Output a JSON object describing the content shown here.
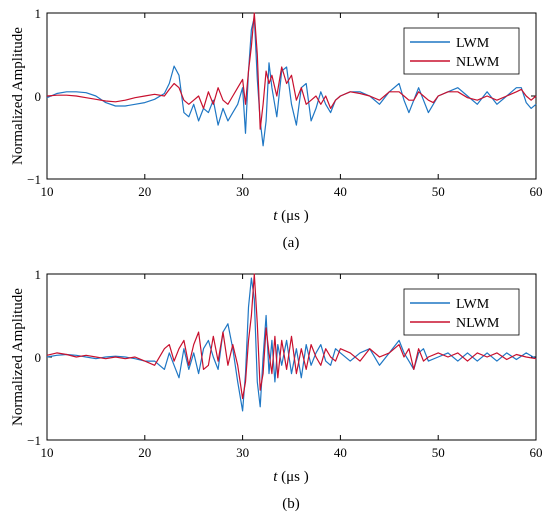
{
  "chart_data": [
    {
      "type": "line",
      "panel_label": "(a)",
      "ylabel": "Normalized Amplitude",
      "xlabel_var": "t",
      "xlabel_unit": " (μs )",
      "xlim": [
        10,
        60
      ],
      "ylim": [
        -1,
        1
      ],
      "xticks": [
        "10",
        "20",
        "30",
        "40",
        "50",
        "60"
      ],
      "yticks": [
        "-1",
        "0",
        "1"
      ],
      "grid": false,
      "legend_position": "top-right",
      "colors": {
        "LWM": "#1f77c4",
        "NLWM": "#c8102e"
      },
      "series": [
        {
          "name": "LWM",
          "x": [
            10,
            11,
            12,
            13,
            14,
            15,
            16,
            17,
            18,
            19,
            20,
            21,
            22,
            22.5,
            23,
            23.5,
            24,
            24.5,
            25,
            25.5,
            26,
            26.5,
            27,
            27.5,
            28,
            28.5,
            29,
            29.5,
            30,
            30.3,
            30.6,
            30.9,
            31.2,
            31.5,
            31.8,
            32.1,
            32.4,
            32.7,
            33,
            33.5,
            34,
            34.5,
            35,
            35.5,
            36,
            36.5,
            37,
            37.5,
            38,
            38.5,
            39,
            39.5,
            40,
            41,
            42,
            43,
            44,
            45,
            46,
            46.5,
            47,
            47.5,
            48,
            48.5,
            49,
            49.5,
            50,
            51,
            52,
            53,
            54,
            55,
            56,
            57,
            58,
            58.5,
            59,
            59.5,
            60
          ],
          "y": [
            -0.02,
            0.03,
            0.05,
            0.05,
            0.04,
            0.0,
            -0.08,
            -0.12,
            -0.12,
            -0.1,
            -0.08,
            -0.04,
            0.03,
            0.15,
            0.36,
            0.25,
            -0.2,
            -0.25,
            -0.1,
            -0.3,
            -0.15,
            -0.2,
            -0.05,
            -0.35,
            -0.15,
            -0.3,
            -0.2,
            -0.1,
            0.1,
            -0.45,
            0.3,
            0.8,
            0.95,
            0.2,
            -0.3,
            -0.6,
            -0.3,
            0.4,
            0.1,
            -0.25,
            0.3,
            0.35,
            -0.1,
            -0.35,
            0.1,
            0.15,
            -0.3,
            -0.15,
            0.05,
            -0.1,
            -0.2,
            -0.05,
            0.0,
            0.05,
            0.05,
            0.0,
            -0.1,
            0.05,
            0.15,
            -0.05,
            -0.2,
            -0.05,
            0.1,
            -0.05,
            -0.2,
            -0.1,
            0.0,
            0.05,
            0.1,
            0.0,
            -0.1,
            0.05,
            -0.1,
            0.0,
            0.1,
            0.1,
            -0.08,
            -0.15,
            -0.1
          ]
        },
        {
          "name": "NLWM",
          "x": [
            10,
            11,
            12,
            13,
            14,
            15,
            16,
            17,
            18,
            19,
            20,
            21,
            22,
            22.5,
            23,
            23.5,
            24,
            24.5,
            25,
            25.5,
            26,
            26.5,
            27,
            27.5,
            28,
            28.5,
            29,
            29.5,
            30,
            30.3,
            30.6,
            30.9,
            31.2,
            31.5,
            31.8,
            32.1,
            32.4,
            32.7,
            33,
            33.5,
            34,
            34.5,
            35,
            35.5,
            36,
            36.5,
            37,
            37.5,
            38,
            38.5,
            39,
            39.5,
            40,
            41,
            42,
            43,
            44,
            45,
            46,
            46.5,
            47,
            47.5,
            48,
            48.5,
            49,
            49.5,
            50,
            51,
            52,
            53,
            54,
            55,
            56,
            57,
            58,
            58.5,
            59,
            59.5,
            60
          ],
          "y": [
            0.0,
            0.01,
            0.01,
            0.0,
            -0.02,
            -0.04,
            -0.06,
            -0.07,
            -0.05,
            -0.02,
            0.0,
            0.02,
            0.0,
            0.08,
            0.15,
            0.1,
            -0.05,
            -0.1,
            -0.05,
            0.0,
            -0.15,
            0.05,
            -0.1,
            0.1,
            -0.05,
            -0.1,
            0.0,
            0.1,
            0.2,
            -0.1,
            0.3,
            0.6,
            1.0,
            0.5,
            -0.4,
            -0.1,
            0.3,
            0.15,
            0.25,
            0.0,
            0.35,
            0.15,
            0.25,
            -0.05,
            0.1,
            -0.1,
            -0.05,
            0.0,
            -0.1,
            0.0,
            -0.15,
            -0.05,
            0.0,
            0.05,
            0.03,
            0.0,
            -0.05,
            0.05,
            0.05,
            0.0,
            -0.05,
            -0.05,
            0.05,
            0.0,
            -0.05,
            -0.08,
            0.0,
            0.05,
            0.05,
            -0.02,
            -0.05,
            0.0,
            -0.05,
            0.0,
            0.05,
            0.08,
            0.0,
            -0.05,
            0.0
          ]
        }
      ]
    },
    {
      "type": "line",
      "panel_label": "(b)",
      "ylabel": "Normalized Amplitude",
      "xlabel_var": "t",
      "xlabel_unit": " (μs )",
      "xlim": [
        10,
        60
      ],
      "ylim": [
        -1,
        1
      ],
      "xticks": [
        "10",
        "20",
        "30",
        "40",
        "50",
        "60"
      ],
      "yticks": [
        "-1",
        "0",
        "1"
      ],
      "grid": false,
      "legend_position": "top-right",
      "colors": {
        "LWM": "#1f77c4",
        "NLWM": "#c8102e"
      },
      "series": [
        {
          "name": "LWM",
          "x": [
            10,
            11,
            12,
            13,
            14,
            15,
            16,
            17,
            18,
            19,
            20,
            21,
            22,
            22.5,
            23,
            23.5,
            24,
            24.5,
            25,
            25.5,
            26,
            26.5,
            27,
            27.5,
            28,
            28.5,
            29,
            29.5,
            30,
            30.3,
            30.6,
            30.9,
            31.2,
            31.5,
            31.8,
            32.1,
            32.4,
            32.7,
            33,
            33.3,
            33.6,
            34,
            34.5,
            35,
            35.5,
            36,
            36.5,
            37,
            37.5,
            38,
            38.5,
            39,
            39.5,
            40,
            41,
            42,
            43,
            44,
            45,
            46,
            46.5,
            47,
            47.5,
            48,
            48.5,
            49,
            50,
            51,
            52,
            53,
            54,
            55,
            56,
            57,
            58,
            59,
            60
          ],
          "y": [
            0.0,
            0.02,
            0.03,
            0.02,
            0.0,
            -0.02,
            0.0,
            0.01,
            0.0,
            -0.02,
            -0.05,
            -0.05,
            -0.15,
            0.05,
            -0.1,
            -0.25,
            0.1,
            -0.15,
            0.05,
            -0.2,
            0.1,
            0.2,
            0.0,
            -0.15,
            0.3,
            0.4,
            0.1,
            -0.3,
            -0.65,
            -0.2,
            0.6,
            0.95,
            0.7,
            -0.3,
            -0.6,
            0.0,
            0.5,
            -0.2,
            0.2,
            -0.3,
            0.15,
            -0.1,
            0.2,
            -0.2,
            0.1,
            -0.25,
            0.15,
            -0.1,
            0.05,
            0.15,
            -0.05,
            -0.1,
            0.1,
            0.05,
            -0.05,
            0.05,
            0.1,
            -0.1,
            0.05,
            0.2,
            0.05,
            -0.05,
            -0.15,
            0.05,
            0.1,
            -0.05,
            0.0,
            0.05,
            -0.05,
            0.05,
            -0.05,
            0.05,
            -0.05,
            0.05,
            -0.03,
            0.05,
            -0.02
          ]
        },
        {
          "name": "NLWM",
          "x": [
            10,
            11,
            12,
            13,
            14,
            15,
            16,
            17,
            18,
            19,
            20,
            21,
            22,
            22.5,
            23,
            23.5,
            24,
            24.5,
            25,
            25.5,
            26,
            26.5,
            27,
            27.5,
            28,
            28.5,
            29,
            29.5,
            30,
            30.3,
            30.6,
            30.9,
            31.2,
            31.5,
            31.8,
            32.1,
            32.4,
            32.7,
            33,
            33.3,
            33.6,
            34,
            34.5,
            35,
            35.5,
            36,
            36.5,
            37,
            37.5,
            38,
            38.5,
            39,
            39.5,
            40,
            41,
            42,
            43,
            44,
            45,
            46,
            46.5,
            47,
            47.5,
            48,
            48.5,
            49,
            50,
            51,
            52,
            53,
            54,
            55,
            56,
            57,
            58,
            59,
            60
          ],
          "y": [
            0.02,
            0.05,
            0.03,
            0.0,
            0.02,
            0.0,
            -0.02,
            0.0,
            -0.02,
            0.0,
            -0.05,
            -0.1,
            0.1,
            0.15,
            -0.05,
            0.1,
            0.2,
            -0.1,
            0.15,
            0.3,
            -0.15,
            -0.1,
            0.25,
            -0.05,
            0.3,
            -0.1,
            0.15,
            -0.1,
            -0.5,
            -0.3,
            0.2,
            0.5,
            1.0,
            0.4,
            -0.4,
            -0.2,
            0.35,
            0.05,
            -0.2,
            0.25,
            -0.25,
            0.2,
            -0.15,
            0.25,
            -0.2,
            0.1,
            -0.15,
            0.15,
            0.0,
            -0.1,
            0.1,
            0.0,
            -0.05,
            0.1,
            0.05,
            -0.05,
            0.1,
            0.0,
            0.05,
            0.15,
            0.0,
            0.1,
            -0.15,
            0.1,
            -0.05,
            0.0,
            0.05,
            0.0,
            0.05,
            -0.05,
            0.05,
            0.0,
            0.05,
            -0.03,
            0.03,
            0.0,
            -0.02
          ]
        }
      ]
    }
  ]
}
